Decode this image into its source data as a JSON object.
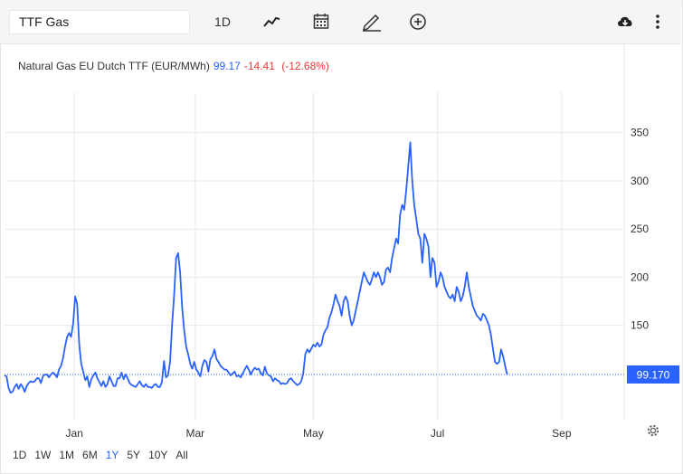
{
  "toolbar": {
    "symbol": "TTF Gas",
    "interval": "1D",
    "icons": [
      "line-chart-icon",
      "calendar-icon",
      "draw-pencil-icon",
      "add-circle-icon",
      "download-cloud-icon",
      "more-vertical-icon"
    ]
  },
  "legend": {
    "name": "Natural Gas EU Dutch TTF (EUR/MWh)",
    "price": "99.17",
    "change": "-14.41",
    "change_pct": "(-12.68%)"
  },
  "colors": {
    "line": "#2962ff",
    "grid": "#e9e9e9",
    "down": "#e53935",
    "tag": "#2962ff"
  },
  "ranges": {
    "items": [
      "1D",
      "1W",
      "1M",
      "6M",
      "1Y",
      "5Y",
      "10Y",
      "All"
    ],
    "active": "1Y"
  },
  "chart_data": {
    "type": "line",
    "ylim": [
      52,
      392
    ],
    "y_ticks": [
      150,
      200,
      250,
      300,
      350
    ],
    "x_ticks": [
      {
        "label": "Jan",
        "x": 11.6
      },
      {
        "label": "Mar",
        "x": 71.5
      },
      {
        "label": "May",
        "x": 130.0
      },
      {
        "label": "Jul",
        "x": 191.5
      },
      {
        "label": "Sep",
        "x": 253.0
      }
    ],
    "xlim": [
      -23,
      284
    ],
    "grid": true,
    "last_value": "99.170",
    "series": [
      {
        "points": [
          [
            -23,
            98
          ],
          [
            -22,
            97
          ],
          [
            -21,
            85
          ],
          [
            -20,
            80
          ],
          [
            -19,
            81
          ],
          [
            -18,
            86
          ],
          [
            -17,
            89
          ],
          [
            -16,
            84
          ],
          [
            -15,
            89
          ],
          [
            -14,
            86
          ],
          [
            -13,
            81
          ],
          [
            -12,
            87
          ],
          [
            -11,
            90
          ],
          [
            -10,
            92
          ],
          [
            -9,
            91
          ],
          [
            -8,
            92
          ],
          [
            -7,
            95
          ],
          [
            -6,
            95
          ],
          [
            -5,
            90
          ],
          [
            -4,
            97
          ],
          [
            -3,
            99
          ],
          [
            -2,
            99
          ],
          [
            -1,
            96
          ],
          [
            0,
            99
          ],
          [
            1,
            101
          ],
          [
            2,
            99
          ],
          [
            3,
            96
          ],
          [
            4,
            104
          ],
          [
            5,
            108
          ],
          [
            6,
            116
          ],
          [
            7,
            128
          ],
          [
            8,
            138
          ],
          [
            9,
            142
          ],
          [
            10,
            138
          ],
          [
            11,
            152
          ],
          [
            12,
            180
          ],
          [
            13,
            172
          ],
          [
            14,
            130
          ],
          [
            15,
            110
          ],
          [
            16,
            102
          ],
          [
            17,
            93
          ],
          [
            18,
            97
          ],
          [
            19,
            86
          ],
          [
            20,
            94
          ],
          [
            21,
            98
          ],
          [
            22,
            101
          ],
          [
            23,
            95
          ],
          [
            24,
            91
          ],
          [
            25,
            87
          ],
          [
            26,
            92
          ],
          [
            27,
            86
          ],
          [
            28,
            89
          ],
          [
            29,
            97
          ],
          [
            30,
            92
          ],
          [
            31,
            87
          ],
          [
            32,
            87
          ],
          [
            33,
            95
          ],
          [
            34,
            95
          ],
          [
            35,
            101
          ],
          [
            36,
            94
          ],
          [
            37,
            99
          ],
          [
            38,
            95
          ],
          [
            39,
            90
          ],
          [
            40,
            88
          ],
          [
            41,
            87
          ],
          [
            42,
            86
          ],
          [
            43,
            89
          ],
          [
            44,
            92
          ],
          [
            45,
            88
          ],
          [
            46,
            86
          ],
          [
            47,
            89
          ],
          [
            48,
            86
          ],
          [
            49,
            86
          ],
          [
            50,
            85
          ],
          [
            51,
            88
          ],
          [
            52,
            89
          ],
          [
            53,
            86
          ],
          [
            54,
            86
          ],
          [
            55,
            91
          ],
          [
            56,
            113
          ],
          [
            57,
            96
          ],
          [
            58,
            98
          ],
          [
            59,
            112
          ],
          [
            60,
            150
          ],
          [
            61,
            180
          ],
          [
            62,
            220
          ],
          [
            63,
            225
          ],
          [
            64,
            205
          ],
          [
            65,
            168
          ],
          [
            66,
            145
          ],
          [
            67,
            128
          ],
          [
            68,
            120
          ],
          [
            69,
            110
          ],
          [
            70,
            105
          ],
          [
            71,
            112
          ],
          [
            72,
            104
          ],
          [
            73,
            101
          ],
          [
            74,
            97
          ],
          [
            75,
            108
          ],
          [
            76,
            114
          ],
          [
            77,
            112
          ],
          [
            78,
            102
          ],
          [
            79,
            115
          ],
          [
            80,
            118
          ],
          [
            81,
            125
          ],
          [
            82,
            115
          ],
          [
            83,
            112
          ],
          [
            84,
            108
          ],
          [
            85,
            106
          ],
          [
            86,
            104
          ],
          [
            87,
            104
          ],
          [
            88,
            101
          ],
          [
            89,
            98
          ],
          [
            90,
            100
          ],
          [
            91,
            102
          ],
          [
            92,
            97
          ],
          [
            93,
            98
          ],
          [
            94,
            96
          ],
          [
            95,
            100
          ],
          [
            96,
            104
          ],
          [
            97,
            108
          ],
          [
            98,
            104
          ],
          [
            99,
            99
          ],
          [
            100,
            103
          ],
          [
            101,
            106
          ],
          [
            102,
            104
          ],
          [
            103,
            105
          ],
          [
            104,
            100
          ],
          [
            105,
            98
          ],
          [
            106,
            107
          ],
          [
            107,
            100
          ],
          [
            108,
            98
          ],
          [
            109,
            97
          ],
          [
            110,
            92
          ],
          [
            111,
            95
          ],
          [
            112,
            93
          ],
          [
            113,
            92
          ],
          [
            114,
            89
          ],
          [
            115,
            90
          ],
          [
            116,
            89
          ],
          [
            117,
            90
          ],
          [
            118,
            94
          ],
          [
            119,
            95
          ],
          [
            120,
            92
          ],
          [
            121,
            90
          ],
          [
            122,
            88
          ],
          [
            123,
            89
          ],
          [
            124,
            92
          ],
          [
            125,
            100
          ],
          [
            126,
            120
          ],
          [
            127,
            125
          ],
          [
            128,
            122
          ],
          [
            129,
            126
          ],
          [
            130,
            130
          ],
          [
            131,
            128
          ],
          [
            132,
            132
          ],
          [
            133,
            128
          ],
          [
            134,
            130
          ],
          [
            135,
            140
          ],
          [
            136,
            145
          ],
          [
            137,
            148
          ],
          [
            138,
            158
          ],
          [
            139,
            164
          ],
          [
            140,
            172
          ],
          [
            141,
            182
          ],
          [
            142,
            175
          ],
          [
            143,
            170
          ],
          [
            144,
            160
          ],
          [
            145,
            175
          ],
          [
            146,
            180
          ],
          [
            147,
            175
          ],
          [
            148,
            160
          ],
          [
            149,
            150
          ],
          [
            150,
            155
          ],
          [
            151,
            165
          ],
          [
            152,
            175
          ],
          [
            153,
            185
          ],
          [
            154,
            195
          ],
          [
            155,
            205
          ],
          [
            156,
            200
          ],
          [
            157,
            195
          ],
          [
            158,
            192
          ],
          [
            159,
            198
          ],
          [
            160,
            205
          ],
          [
            161,
            200
          ],
          [
            162,
            205
          ],
          [
            163,
            200
          ],
          [
            164,
            192
          ],
          [
            165,
            195
          ],
          [
            166,
            208
          ],
          [
            167,
            210
          ],
          [
            168,
            205
          ],
          [
            169,
            220
          ],
          [
            170,
            230
          ],
          [
            171,
            240
          ],
          [
            172,
            235
          ],
          [
            173,
            265
          ],
          [
            174,
            275
          ],
          [
            175,
            270
          ],
          [
            176,
            290
          ],
          [
            177,
            315
          ],
          [
            178,
            340
          ],
          [
            179,
            300
          ],
          [
            180,
            275
          ],
          [
            181,
            260
          ],
          [
            182,
            245
          ],
          [
            183,
            240
          ],
          [
            184,
            215
          ],
          [
            185,
            245
          ],
          [
            186,
            240
          ],
          [
            187,
            232
          ],
          [
            188,
            200
          ],
          [
            189,
            220
          ],
          [
            190,
            215
          ],
          [
            191,
            190
          ],
          [
            192,
            195
          ],
          [
            193,
            205
          ],
          [
            194,
            200
          ],
          [
            195,
            190
          ],
          [
            196,
            185
          ],
          [
            197,
            180
          ],
          [
            198,
            178
          ],
          [
            199,
            182
          ],
          [
            200,
            175
          ],
          [
            201,
            190
          ],
          [
            202,
            185
          ],
          [
            203,
            175
          ],
          [
            204,
            180
          ],
          [
            205,
            190
          ],
          [
            206,
            205
          ],
          [
            207,
            190
          ],
          [
            208,
            180
          ],
          [
            209,
            170
          ],
          [
            210,
            165
          ],
          [
            211,
            160
          ],
          [
            212,
            158
          ],
          [
            213,
            155
          ],
          [
            214,
            162
          ],
          [
            215,
            160
          ],
          [
            216,
            155
          ],
          [
            217,
            150
          ],
          [
            218,
            140
          ],
          [
            219,
            125
          ],
          [
            220,
            112
          ],
          [
            221,
            110
          ],
          [
            222,
            112
          ],
          [
            223,
            125
          ],
          [
            224,
            118
          ],
          [
            225,
            108
          ],
          [
            226,
            99
          ]
        ]
      }
    ]
  }
}
